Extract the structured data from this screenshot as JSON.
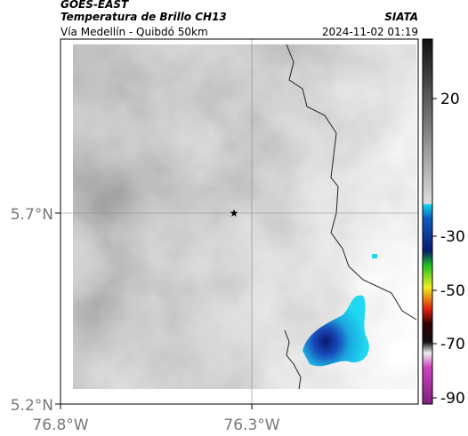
{
  "header": {
    "source": "GOES-EAST",
    "title": "Temperatura de Brillo CH13",
    "subtitle": "Vía Medellín - Quibdó 50km",
    "org": "SIATA",
    "timestamp": "2024-11-02 01:19"
  },
  "map": {
    "x_ticks": [
      "76.8°W",
      "76.3°W"
    ],
    "y_ticks": [
      "5.7°N",
      "5.2°N"
    ]
  },
  "colorbar": {
    "ticks": [
      "20",
      "-30",
      "-50",
      "-70",
      "-90"
    ]
  }
}
